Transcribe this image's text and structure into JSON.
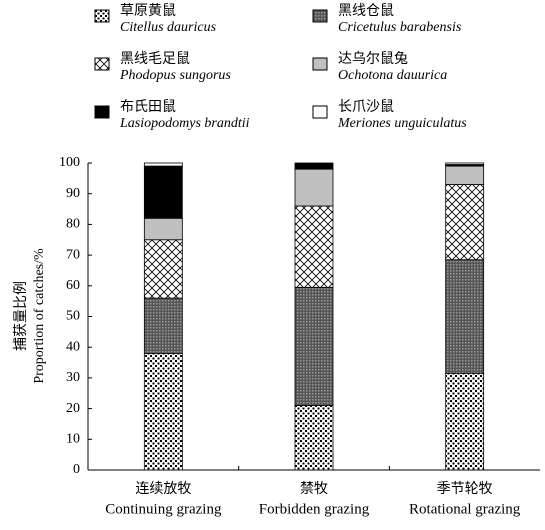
{
  "chart_data": {
    "type": "stacked-bar",
    "y_label": "捕获量比例",
    "y_label_en": "Proportion of catches/%",
    "categories": [
      "连续放牧",
      "禁牧",
      "季节轮牧"
    ],
    "categories_en": [
      "Continuing grazing",
      "Forbidden grazing",
      "Rotational grazing"
    ],
    "ylim": [
      0,
      100
    ],
    "yticks": [
      0,
      10,
      20,
      30,
      40,
      50,
      60,
      70,
      80,
      90,
      100
    ],
    "series": [
      {
        "name": "草原黄鼠",
        "latin": "Citellus dauricus",
        "color": "#000000",
        "pattern": "dots",
        "values": [
          38,
          21,
          31.5
        ]
      },
      {
        "name": "黑线仓鼠",
        "latin": "Cricetulus barabensis",
        "color": "#000000",
        "pattern": "dense",
        "values": [
          18,
          38.5,
          37
        ]
      },
      {
        "name": "黑线毛足鼠",
        "latin": "Phodopus sungorus",
        "color": "#000000",
        "pattern": "cross",
        "values": [
          19,
          26.5,
          24.5
        ]
      },
      {
        "name": "达乌尔鼠兔",
        "latin": "Ochotona dauurica",
        "color": "#c0c0c0",
        "pattern": null,
        "values": [
          7,
          12,
          6
        ]
      },
      {
        "name": "布氏田鼠",
        "latin": "Lasiopodomys brandtii",
        "color": "#000000",
        "pattern": null,
        "values": [
          17,
          2,
          0.5
        ]
      },
      {
        "name": "长爪沙鼠",
        "latin": "Meriones unguiculatus",
        "color": "#ffffff",
        "pattern": null,
        "values": [
          1,
          0,
          0.5
        ]
      }
    ]
  }
}
